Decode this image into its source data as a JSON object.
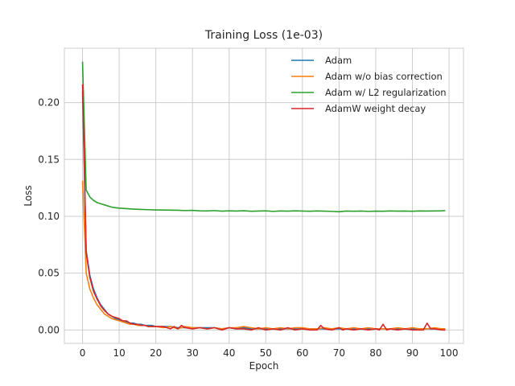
{
  "chart_data": {
    "type": "line",
    "title": "Training Loss (1e-03)",
    "xlabel": "Epoch",
    "ylabel": "Loss",
    "xlim": [
      -4.95,
      103.95
    ],
    "ylim": [
      -0.0118,
      0.2478
    ],
    "xticks": [
      0,
      10,
      20,
      30,
      40,
      50,
      60,
      70,
      80,
      90,
      100
    ],
    "xtick_labels": [
      "0",
      "10",
      "20",
      "30",
      "40",
      "50",
      "60",
      "70",
      "80",
      "90",
      "100"
    ],
    "yticks": [
      0.0,
      0.05,
      0.1,
      0.15,
      0.2
    ],
    "ytick_labels": [
      "0.00",
      "0.05",
      "0.10",
      "0.15",
      "0.20"
    ],
    "grid": true,
    "legend_position": "top-right",
    "series": [
      {
        "name": "Adam",
        "color": "#1f77b4",
        "x": [
          0,
          1,
          2,
          3,
          4,
          5,
          6,
          7,
          8,
          9,
          10,
          11,
          12,
          13,
          14,
          15,
          16,
          17,
          18,
          19,
          20,
          22,
          24,
          26,
          28,
          30,
          32,
          34,
          36,
          38,
          40,
          42,
          44,
          46,
          48,
          50,
          52,
          54,
          56,
          58,
          60,
          62,
          64,
          66,
          68,
          70,
          72,
          74,
          76,
          78,
          80,
          82,
          84,
          86,
          88,
          90,
          92,
          94,
          96,
          98,
          99
        ],
        "y": [
          0.21,
          0.07,
          0.048,
          0.036,
          0.028,
          0.022,
          0.018,
          0.014,
          0.012,
          0.01,
          0.009,
          0.008,
          0.007,
          0.006,
          0.006,
          0.005,
          0.005,
          0.004,
          0.004,
          0.004,
          0.003,
          0.003,
          0.003,
          0.002,
          0.002,
          0.002,
          0.002,
          0.002,
          0.002,
          0.001,
          0.002,
          0.001,
          0.002,
          0.001,
          0.001,
          0.001,
          0.001,
          0.001,
          0.001,
          0.001,
          0.001,
          0.001,
          0.001,
          0.001,
          0.001,
          0.001,
          0.001,
          0.001,
          0.001,
          0.001,
          0.001,
          0.001,
          0.001,
          0.001,
          0.001,
          0.001,
          0.001,
          0.001,
          0.001,
          0.001,
          0.001
        ]
      },
      {
        "name": "Adam w/o bias correction",
        "color": "#ff7f0e",
        "x": [
          0,
          1,
          2,
          3,
          4,
          5,
          6,
          7,
          8,
          9,
          10,
          11,
          12,
          13,
          14,
          15,
          16,
          17,
          18,
          19,
          20,
          22,
          24,
          26,
          28,
          30,
          32,
          34,
          36,
          38,
          40,
          42,
          44,
          46,
          48,
          50,
          52,
          54,
          56,
          58,
          60,
          62,
          64,
          66,
          68,
          70,
          72,
          74,
          76,
          78,
          80,
          82,
          84,
          86,
          88,
          90,
          92,
          94,
          96,
          98,
          99
        ],
        "y": [
          0.131,
          0.05,
          0.036,
          0.028,
          0.022,
          0.018,
          0.014,
          0.012,
          0.01,
          0.009,
          0.008,
          0.007,
          0.006,
          0.005,
          0.005,
          0.004,
          0.004,
          0.004,
          0.003,
          0.003,
          0.003,
          0.002,
          0.003,
          0.001,
          0.003,
          0.002,
          0.002,
          0.001,
          0.002,
          0.001,
          0.002,
          0.002,
          0.003,
          0.002,
          0.001,
          0.002,
          0.001,
          0.002,
          0.001,
          0.002,
          0.002,
          0.001,
          0.001,
          0.002,
          0.001,
          0.002,
          0.001,
          0.002,
          0.001,
          0.002,
          0.001,
          0.001,
          0.001,
          0.002,
          0.001,
          0.002,
          0.001,
          0.001,
          0.002,
          0.001,
          0.001
        ]
      },
      {
        "name": "Adam w/ L2 regularization",
        "color": "#2ca02c",
        "x": [
          0,
          1,
          2,
          3,
          4,
          5,
          6,
          7,
          8,
          9,
          10,
          12,
          14,
          16,
          18,
          20,
          22,
          24,
          26,
          28,
          30,
          32,
          34,
          36,
          38,
          40,
          42,
          44,
          46,
          48,
          50,
          52,
          54,
          56,
          58,
          60,
          62,
          64,
          66,
          68,
          70,
          72,
          74,
          76,
          78,
          80,
          82,
          84,
          86,
          88,
          90,
          92,
          94,
          96,
          98,
          99
        ],
        "y": [
          0.236,
          0.123,
          0.117,
          0.114,
          0.112,
          0.111,
          0.11,
          0.109,
          0.108,
          0.1075,
          0.1072,
          0.1067,
          0.1063,
          0.106,
          0.1058,
          0.1056,
          0.1055,
          0.1054,
          0.1053,
          0.105,
          0.1052,
          0.1048,
          0.1047,
          0.105,
          0.1045,
          0.1048,
          0.1046,
          0.1049,
          0.1044,
          0.1046,
          0.1048,
          0.1043,
          0.1047,
          0.1045,
          0.1048,
          0.1046,
          0.1044,
          0.1047,
          0.1045,
          0.1043,
          0.104,
          0.1046,
          0.1044,
          0.1046,
          0.1043,
          0.1045,
          0.1044,
          0.1047,
          0.1045,
          0.1046,
          0.1044,
          0.1047,
          0.1046,
          0.1047,
          0.1048,
          0.105
        ]
      },
      {
        "name": "AdamW weight decay",
        "color": "#d62728",
        "x": [
          0,
          1,
          2,
          3,
          4,
          5,
          6,
          7,
          8,
          9,
          10,
          11,
          12,
          13,
          14,
          15,
          16,
          17,
          18,
          19,
          20,
          22,
          24,
          25,
          26,
          27,
          28,
          30,
          32,
          34,
          36,
          38,
          40,
          42,
          44,
          46,
          48,
          50,
          52,
          54,
          56,
          58,
          60,
          62,
          64,
          65,
          66,
          68,
          70,
          71,
          72,
          74,
          76,
          78,
          80,
          81,
          82,
          83,
          84,
          86,
          88,
          90,
          92,
          93,
          94,
          95,
          96,
          98,
          99
        ],
        "y": [
          0.216,
          0.068,
          0.046,
          0.034,
          0.027,
          0.021,
          0.017,
          0.014,
          0.012,
          0.011,
          0.01,
          0.008,
          0.008,
          0.006,
          0.005,
          0.005,
          0.004,
          0.004,
          0.003,
          0.003,
          0.003,
          0.003,
          0.001,
          0.003,
          0.001,
          0.004,
          0.002,
          0.001,
          0.002,
          0.001,
          0.002,
          0.0,
          0.002,
          0.001,
          0.001,
          0.0,
          0.002,
          0.0,
          0.001,
          0.0,
          0.002,
          0.0,
          0.001,
          0.0,
          0.0,
          0.004,
          0.001,
          0.0,
          0.002,
          0.0,
          0.001,
          0.0,
          0.001,
          0.0,
          0.001,
          0.0,
          0.005,
          0.0,
          0.001,
          0.0,
          0.001,
          0.0,
          0.0,
          0.0,
          0.006,
          0.001,
          0.001,
          0.0,
          0.0
        ]
      }
    ]
  }
}
